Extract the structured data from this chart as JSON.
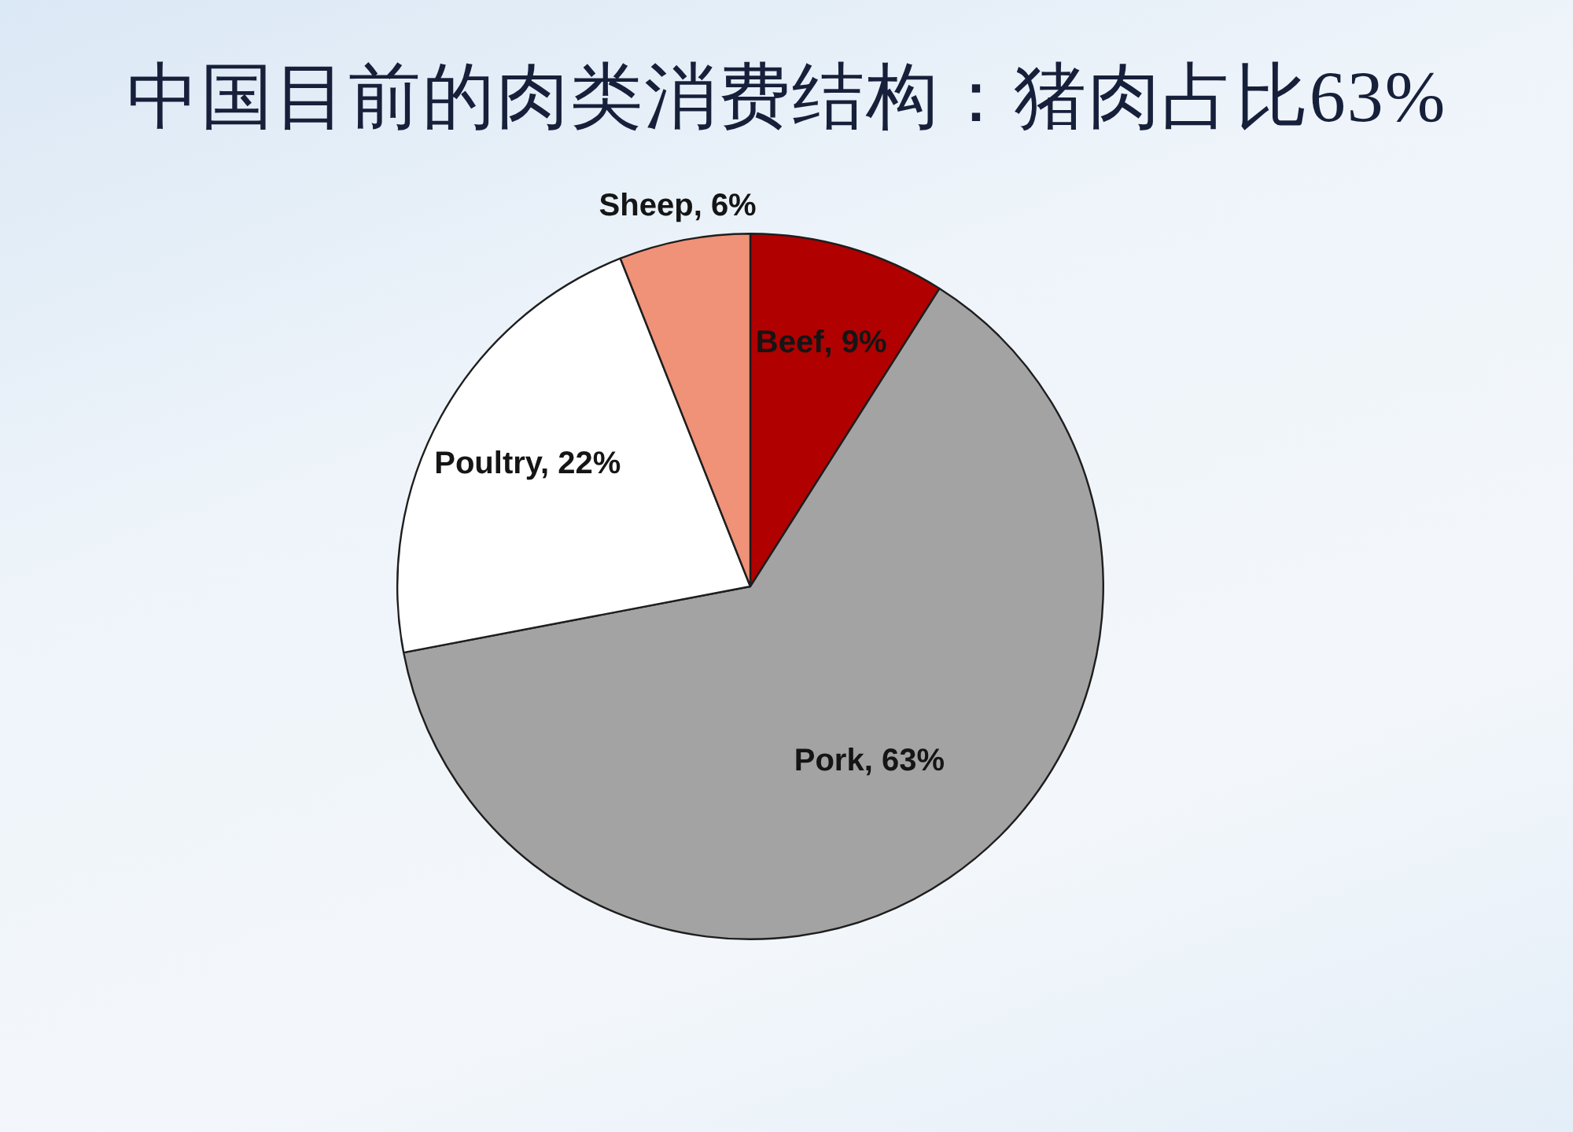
{
  "chart_data": {
    "type": "pie",
    "title": "中国目前的肉类消费结构：猪肉占比63%",
    "categories": [
      "Beef",
      "Pork",
      "Poultry",
      "Sheep"
    ],
    "values": [
      9,
      63,
      22,
      6
    ],
    "value_labels": [
      "9%",
      "63%",
      "22%",
      "6%"
    ],
    "colors": [
      "#b00000",
      "#a3a3a3",
      "#ffffff",
      "#ef9278"
    ],
    "legend": false
  }
}
